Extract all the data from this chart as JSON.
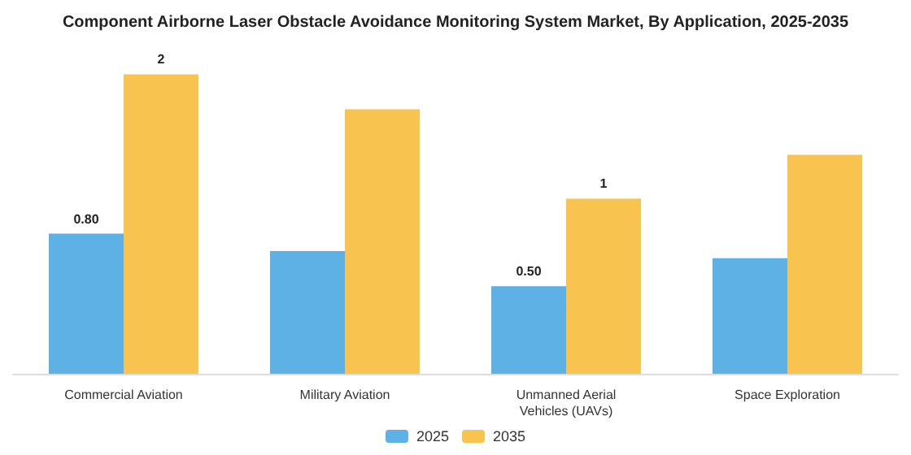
{
  "chart_data": {
    "type": "bar",
    "title": "Component Airborne Laser Obstacle Avoidance Monitoring System Market, By Application, 2025-2035",
    "categories": [
      "Commercial Aviation",
      "Military Aviation",
      "Unmanned Aerial\nVehicles (UAVs)",
      "Space Exploration"
    ],
    "series": [
      {
        "name": "2025",
        "color": "#5db1e4",
        "values": [
          0.8,
          0.7,
          0.5,
          0.66
        ],
        "value_labels": [
          "0.80",
          null,
          "0.50",
          null
        ]
      },
      {
        "name": "2035",
        "color": "#f8c44f",
        "values": [
          1.71,
          1.51,
          1.0,
          1.25
        ],
        "value_labels": [
          "2",
          null,
          "1",
          null
        ]
      }
    ],
    "legend": "bottom"
  }
}
